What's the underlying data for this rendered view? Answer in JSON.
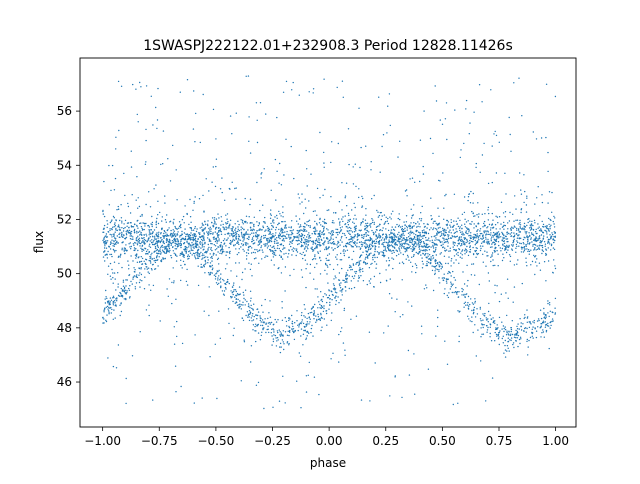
{
  "chart_data": {
    "type": "scatter",
    "title": "1SWASPJ222122.01+232908.3 Period 12828.11426s",
    "xlabel": "phase",
    "ylabel": "flux",
    "xlim": [
      -1.1,
      1.09
    ],
    "ylim": [
      44.34,
      57.96
    ],
    "x_ticks": [
      "−1.00",
      "−0.75",
      "−0.50",
      "−0.25",
      "0.00",
      "0.25",
      "0.50",
      "0.75",
      "1.00"
    ],
    "x_tick_values": [
      -1.0,
      -0.75,
      -0.5,
      -0.25,
      0.0,
      0.25,
      0.5,
      0.75,
      1.0
    ],
    "y_ticks": [
      "46",
      "48",
      "50",
      "52",
      "54",
      "56"
    ],
    "y_tick_values": [
      46,
      48,
      50,
      52,
      54,
      56
    ],
    "grid": false,
    "marker_color": "#1f77b4",
    "series": [
      {
        "x": [
          -1.0,
          -0.9,
          -0.8,
          -0.7,
          -0.6,
          -0.5,
          -0.4,
          -0.3,
          -0.2,
          -0.1,
          0.0,
          0.1,
          0.2,
          0.3,
          0.4,
          0.5,
          0.6,
          0.7,
          0.8,
          0.9,
          1.0
        ],
        "y": [
          51.3,
          51.3,
          51.3,
          51.3,
          51.3,
          51.3,
          51.3,
          51.3,
          51.3,
          51.3,
          51.3,
          51.3,
          51.3,
          51.3,
          51.3,
          51.3,
          51.3,
          51.3,
          51.3,
          51.3,
          51.3
        ]
      },
      {
        "x": [
          -1.0,
          -0.9,
          -0.8,
          -0.7,
          -0.6,
          -0.5,
          -0.4,
          -0.3,
          -0.2,
          -0.1,
          0.0,
          0.1,
          0.2,
          0.3,
          0.4,
          0.5,
          0.6,
          0.7,
          0.8,
          0.9,
          1.0
        ],
        "y": [
          48.5,
          49.4,
          50.4,
          51.1,
          51.0,
          50.0,
          49.0,
          48.1,
          47.7,
          48.1,
          49.0,
          50.0,
          51.0,
          51.3,
          51.0,
          50.0,
          49.0,
          48.1,
          47.7,
          48.0,
          48.5
        ]
      }
    ]
  }
}
